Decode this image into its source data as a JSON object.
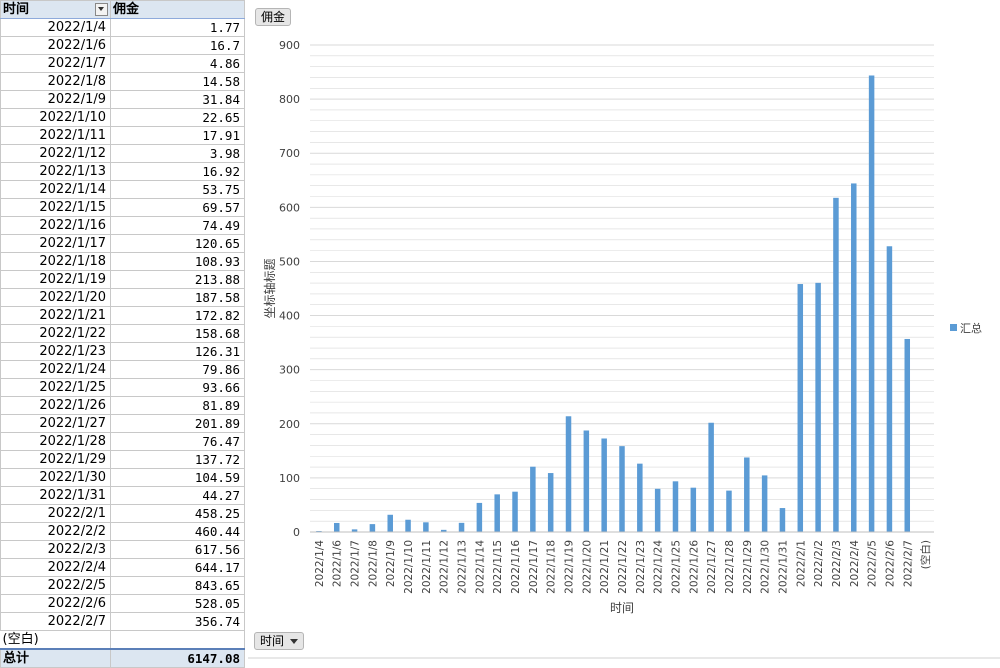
{
  "table": {
    "header_time": "时间",
    "header_value": "佣金",
    "rows": [
      {
        "date": "2022/1/4",
        "value": "1.77"
      },
      {
        "date": "2022/1/6",
        "value": "16.7"
      },
      {
        "date": "2022/1/7",
        "value": "4.86"
      },
      {
        "date": "2022/1/8",
        "value": "14.58"
      },
      {
        "date": "2022/1/9",
        "value": "31.84"
      },
      {
        "date": "2022/1/10",
        "value": "22.65"
      },
      {
        "date": "2022/1/11",
        "value": "17.91"
      },
      {
        "date": "2022/1/12",
        "value": "3.98"
      },
      {
        "date": "2022/1/13",
        "value": "16.92"
      },
      {
        "date": "2022/1/14",
        "value": "53.75"
      },
      {
        "date": "2022/1/15",
        "value": "69.57"
      },
      {
        "date": "2022/1/16",
        "value": "74.49"
      },
      {
        "date": "2022/1/17",
        "value": "120.65"
      },
      {
        "date": "2022/1/18",
        "value": "108.93"
      },
      {
        "date": "2022/1/19",
        "value": "213.88"
      },
      {
        "date": "2022/1/20",
        "value": "187.58"
      },
      {
        "date": "2022/1/21",
        "value": "172.82"
      },
      {
        "date": "2022/1/22",
        "value": "158.68"
      },
      {
        "date": "2022/1/23",
        "value": "126.31"
      },
      {
        "date": "2022/1/24",
        "value": "79.86"
      },
      {
        "date": "2022/1/25",
        "value": "93.66"
      },
      {
        "date": "2022/1/26",
        "value": "81.89"
      },
      {
        "date": "2022/1/27",
        "value": "201.89"
      },
      {
        "date": "2022/1/28",
        "value": "76.47"
      },
      {
        "date": "2022/1/29",
        "value": "137.72"
      },
      {
        "date": "2022/1/30",
        "value": "104.59"
      },
      {
        "date": "2022/1/31",
        "value": "44.27"
      },
      {
        "date": "2022/2/1",
        "value": "458.25"
      },
      {
        "date": "2022/2/2",
        "value": "460.44"
      },
      {
        "date": "2022/2/3",
        "value": "617.56"
      },
      {
        "date": "2022/2/4",
        "value": "644.17"
      },
      {
        "date": "2022/2/5",
        "value": "843.65"
      },
      {
        "date": "2022/2/6",
        "value": "528.05"
      },
      {
        "date": "2022/2/7",
        "value": "356.74"
      }
    ],
    "blank_label": "(空白)",
    "total_label": "总计",
    "total_value": "6147.08"
  },
  "chart_buttons": {
    "value_field": "佣金",
    "axis_field": "时间"
  },
  "colors": {
    "bar": "#5b9bd5",
    "grid": "#d9d9d9",
    "header_bg": "#dce6f1"
  },
  "chart_data": {
    "type": "bar",
    "categories": [
      "2022/1/4",
      "2022/1/6",
      "2022/1/7",
      "2022/1/8",
      "2022/1/9",
      "2022/1/10",
      "2022/1/11",
      "2022/1/12",
      "2022/1/13",
      "2022/1/14",
      "2022/1/15",
      "2022/1/16",
      "2022/1/17",
      "2022/1/18",
      "2022/1/19",
      "2022/1/20",
      "2022/1/21",
      "2022/1/22",
      "2022/1/23",
      "2022/1/24",
      "2022/1/25",
      "2022/1/26",
      "2022/1/27",
      "2022/1/28",
      "2022/1/29",
      "2022/1/30",
      "2022/1/31",
      "2022/2/1",
      "2022/2/2",
      "2022/2/3",
      "2022/2/4",
      "2022/2/5",
      "2022/2/6",
      "2022/2/7",
      "(空白)"
    ],
    "series": [
      {
        "name": "汇总",
        "values": [
          1.77,
          16.7,
          4.86,
          14.58,
          31.84,
          22.65,
          17.91,
          3.98,
          16.92,
          53.75,
          69.57,
          74.49,
          120.65,
          108.93,
          213.88,
          187.58,
          172.82,
          158.68,
          126.31,
          79.86,
          93.66,
          81.89,
          201.89,
          76.47,
          137.72,
          104.59,
          44.27,
          458.25,
          460.44,
          617.56,
          644.17,
          843.65,
          528.05,
          356.74,
          null
        ]
      }
    ],
    "xlabel": "时间",
    "ylabel": "坐标轴标题",
    "ylim": [
      0,
      900
    ],
    "yticks": [
      0,
      100,
      200,
      300,
      400,
      500,
      600,
      700,
      800,
      900
    ],
    "minor_gridlines": true,
    "legend": "right"
  }
}
